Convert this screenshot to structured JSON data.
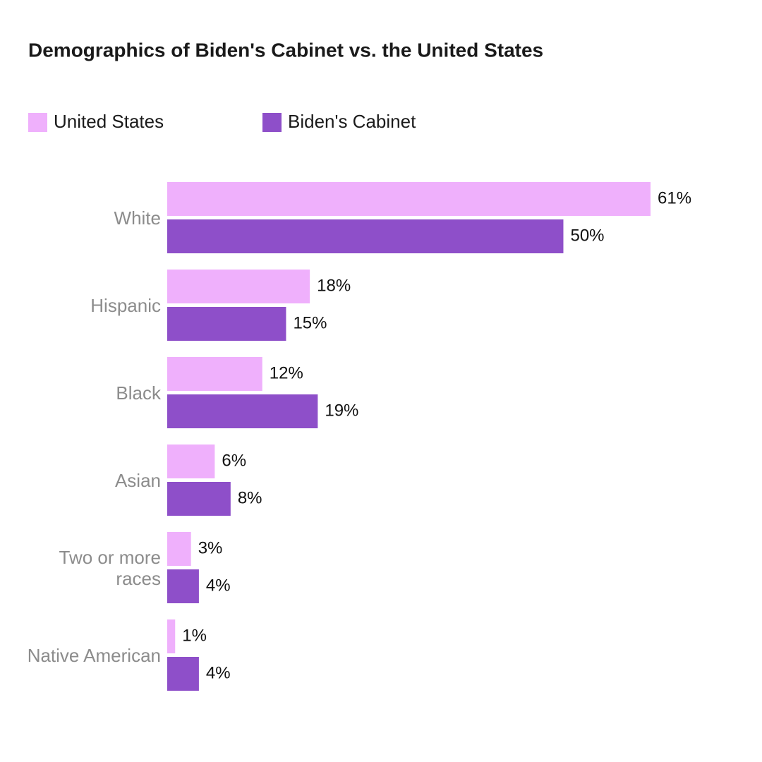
{
  "chart_data": {
    "type": "bar",
    "orientation": "horizontal",
    "title": "Demographics of Biden's Cabinet vs. the United States",
    "categories": [
      "White",
      "Hispanic",
      "Black",
      "Asian",
      "Two or more races",
      "Native American"
    ],
    "series": [
      {
        "name": "United States",
        "color": "#efb0fc",
        "values": [
          61,
          18,
          12,
          6,
          3,
          1
        ],
        "value_labels": [
          "61%",
          "18%",
          "12%",
          "6%",
          "3%",
          "1%"
        ]
      },
      {
        "name": "Biden's Cabinet",
        "color": "#8e4fc9",
        "values": [
          50,
          15,
          19,
          8,
          4,
          4
        ],
        "value_labels": [
          "50%",
          "15%",
          "19%",
          "8%",
          "4%",
          "4%"
        ]
      }
    ]
  }
}
